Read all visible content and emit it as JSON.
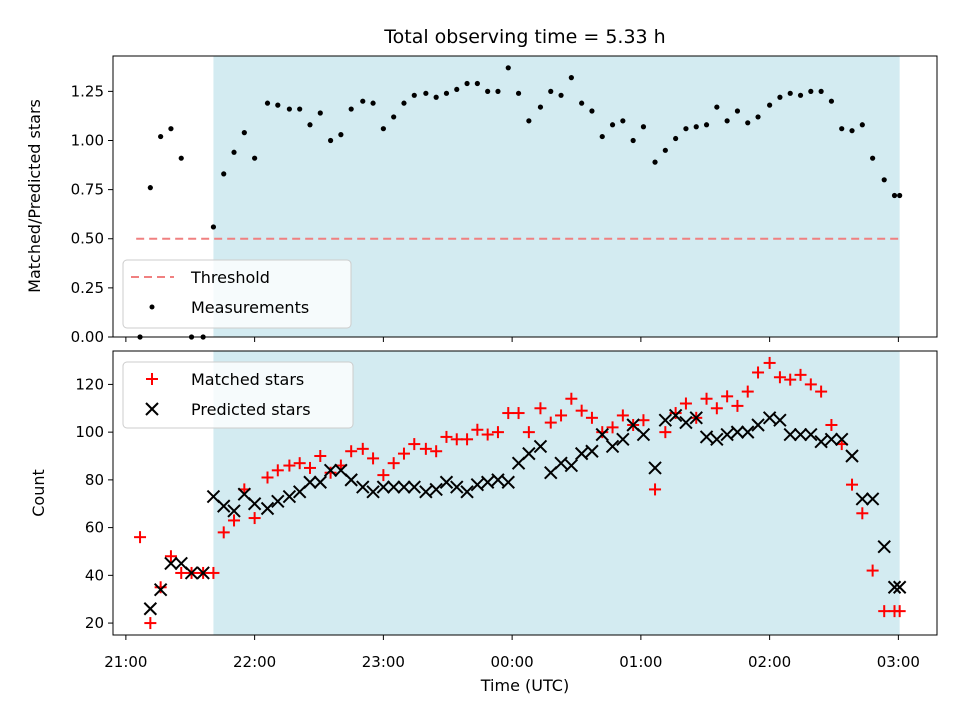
{
  "chart_data": {
    "type": "scatter",
    "title": "Total observing time = 5.33 h",
    "xlabel": "Time (UTC)",
    "x_tick_labels": [
      "21:00",
      "22:00",
      "23:00",
      "00:00",
      "01:00",
      "02:00",
      "03:00"
    ],
    "x_tick_hours": [
      0,
      1,
      2,
      3,
      4,
      5,
      6
    ],
    "xlim_hours": [
      -0.1,
      6.3
    ],
    "x_unit": "hours after 21:00 UTC",
    "observing_window_hours": [
      0.68,
      6.01
    ],
    "colors": {
      "window": "#d3ebf1",
      "threshold": "#f08080",
      "matched": "#ff0000",
      "predicted": "#000000",
      "measurement": "#000000"
    },
    "panels": [
      {
        "ylabel": "Matched/Predicted stars",
        "ylim": [
          0,
          1.43
        ],
        "y_ticks": [
          0.0,
          0.25,
          0.5,
          0.75,
          1.0,
          1.25
        ],
        "y_tick_labels": [
          "0.00",
          "0.25",
          "0.50",
          "0.75",
          "1.00",
          "1.25"
        ],
        "legend_position": "lower-left",
        "legend": [
          "Threshold",
          "Measurements"
        ],
        "threshold": {
          "name": "Threshold",
          "y": 0.5,
          "x_range": [
            0.08,
            6.01
          ]
        },
        "series": [
          {
            "name": "Measurements",
            "marker": "dot",
            "x": [
              0.11,
              0.19,
              0.27,
              0.35,
              0.43,
              0.51,
              0.6,
              0.68,
              0.76,
              0.84,
              0.92,
              1.0,
              1.1,
              1.18,
              1.27,
              1.35,
              1.43,
              1.51,
              1.59,
              1.67,
              1.75,
              1.84,
              1.92,
              2.0,
              2.08,
              2.16,
              2.24,
              2.33,
              2.41,
              2.49,
              2.57,
              2.65,
              2.73,
              2.81,
              2.89,
              2.97,
              3.05,
              3.13,
              3.22,
              3.3,
              3.38,
              3.46,
              3.54,
              3.62,
              3.7,
              3.78,
              3.86,
              3.94,
              4.02,
              4.11,
              4.19,
              4.27,
              4.35,
              4.43,
              4.51,
              4.59,
              4.67,
              4.75,
              4.83,
              4.91,
              5.0,
              5.08,
              5.16,
              5.24,
              5.32,
              5.4,
              5.48,
              5.56,
              5.64,
              5.72,
              5.8,
              5.89,
              5.97,
              6.01
            ],
            "y": [
              0.0,
              0.76,
              1.02,
              1.06,
              0.91,
              0.0,
              0.0,
              0.56,
              0.83,
              0.94,
              1.04,
              0.91,
              1.19,
              1.18,
              1.16,
              1.16,
              1.08,
              1.14,
              1.0,
              1.03,
              1.16,
              1.2,
              1.19,
              1.06,
              1.12,
              1.19,
              1.23,
              1.24,
              1.22,
              1.24,
              1.26,
              1.29,
              1.29,
              1.25,
              1.25,
              1.37,
              1.24,
              1.1,
              1.17,
              1.25,
              1.23,
              1.32,
              1.19,
              1.15,
              1.02,
              1.08,
              1.1,
              1.0,
              1.07,
              0.89,
              0.95,
              1.01,
              1.06,
              1.07,
              1.08,
              1.17,
              1.1,
              1.15,
              1.09,
              1.12,
              1.18,
              1.22,
              1.24,
              1.23,
              1.25,
              1.25,
              1.2,
              1.06,
              1.05,
              1.08,
              0.91,
              0.8,
              0.72,
              0.72
            ]
          }
        ]
      },
      {
        "ylabel": "Count",
        "ylim": [
          15,
          134
        ],
        "y_ticks": [
          20,
          40,
          60,
          80,
          100,
          120
        ],
        "y_tick_labels": [
          "20",
          "40",
          "60",
          "80",
          "100",
          "120"
        ],
        "legend_position": "upper-left",
        "legend": [
          "Matched stars",
          "Predicted stars"
        ],
        "series": [
          {
            "name": "Matched stars",
            "marker": "plus",
            "x": [
              0.11,
              0.19,
              0.27,
              0.35,
              0.43,
              0.51,
              0.6,
              0.68,
              0.76,
              0.84,
              0.92,
              1.0,
              1.1,
              1.18,
              1.27,
              1.35,
              1.43,
              1.51,
              1.59,
              1.67,
              1.75,
              1.84,
              1.92,
              2.0,
              2.08,
              2.16,
              2.24,
              2.33,
              2.41,
              2.49,
              2.57,
              2.65,
              2.73,
              2.81,
              2.89,
              2.97,
              3.05,
              3.13,
              3.22,
              3.3,
              3.38,
              3.46,
              3.54,
              3.62,
              3.7,
              3.78,
              3.86,
              3.94,
              4.02,
              4.11,
              4.19,
              4.27,
              4.35,
              4.43,
              4.51,
              4.59,
              4.67,
              4.75,
              4.83,
              4.91,
              5.0,
              5.08,
              5.16,
              5.24,
              5.32,
              5.4,
              5.48,
              5.56,
              5.64,
              5.72,
              5.8,
              5.89,
              5.97,
              6.01
            ],
            "y": [
              56,
              20,
              35,
              48,
              41,
              41,
              41,
              41,
              58,
              63,
              76,
              64,
              81,
              84,
              86,
              87,
              85,
              90,
              83,
              86,
              92,
              93,
              89,
              82,
              87,
              91,
              95,
              93,
              92,
              98,
              97,
              97,
              101,
              99,
              100,
              108,
              108,
              100,
              110,
              104,
              107,
              114,
              109,
              106,
              100,
              102,
              107,
              103,
              105,
              76,
              100,
              108,
              112,
              106,
              114,
              110,
              115,
              111,
              117,
              125,
              129,
              123,
              122,
              124,
              120,
              117,
              103,
              95,
              78,
              66,
              42,
              25,
              25,
              25
            ]
          },
          {
            "name": "Predicted stars",
            "marker": "x",
            "x": [
              0.19,
              0.27,
              0.35,
              0.43,
              0.51,
              0.6,
              0.68,
              0.76,
              0.84,
              0.92,
              1.0,
              1.1,
              1.18,
              1.27,
              1.35,
              1.43,
              1.51,
              1.59,
              1.67,
              1.75,
              1.84,
              1.92,
              2.0,
              2.08,
              2.16,
              2.24,
              2.33,
              2.41,
              2.49,
              2.57,
              2.65,
              2.73,
              2.81,
              2.89,
              2.97,
              3.05,
              3.13,
              3.22,
              3.3,
              3.38,
              3.46,
              3.54,
              3.62,
              3.7,
              3.78,
              3.86,
              3.94,
              4.02,
              4.11,
              4.19,
              4.27,
              4.35,
              4.43,
              4.51,
              4.59,
              4.67,
              4.75,
              4.83,
              4.91,
              5.0,
              5.08,
              5.16,
              5.24,
              5.32,
              5.4,
              5.48,
              5.56,
              5.64,
              5.72,
              5.8,
              5.89,
              5.97,
              6.01
            ],
            "y": [
              26,
              34,
              45,
              45,
              41,
              41,
              73,
              69,
              67,
              74,
              70,
              68,
              71,
              73,
              75,
              79,
              79,
              84,
              84,
              80,
              77,
              75,
              77,
              77,
              77,
              77,
              75,
              76,
              79,
              77,
              75,
              78,
              79,
              80,
              79,
              87,
              91,
              94,
              83,
              87,
              86,
              91,
              92,
              99,
              94,
              97,
              103,
              99,
              85,
              105,
              107,
              104,
              106,
              98,
              97,
              99,
              100,
              100,
              103,
              106,
              105,
              99,
              99,
              99,
              96,
              97,
              97,
              90,
              72,
              72,
              52,
              35,
              35
            ]
          }
        ]
      }
    ]
  }
}
